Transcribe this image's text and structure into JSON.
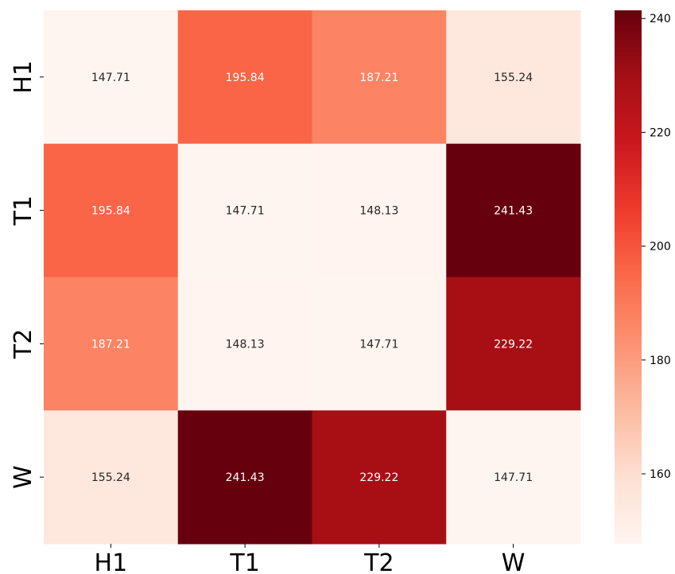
{
  "chart_data": {
    "type": "heatmap",
    "title": "",
    "xlabel": "",
    "ylabel": "",
    "x_labels": [
      "H1",
      "T1",
      "T2",
      "W"
    ],
    "y_labels": [
      "H1",
      "T1",
      "T2",
      "W"
    ],
    "values": [
      [
        147.71,
        195.84,
        187.21,
        155.24
      ],
      [
        195.84,
        147.71,
        148.13,
        241.43
      ],
      [
        187.21,
        148.13,
        147.71,
        229.22
      ],
      [
        155.24,
        241.43,
        229.22,
        147.71
      ]
    ],
    "value_format": "0.00",
    "colormap": "Reds",
    "color_range": [
      147.71,
      241.43
    ],
    "colorbar_ticks": [
      160,
      180,
      200,
      220,
      240
    ],
    "colorbar_position": "right",
    "grid": false
  }
}
